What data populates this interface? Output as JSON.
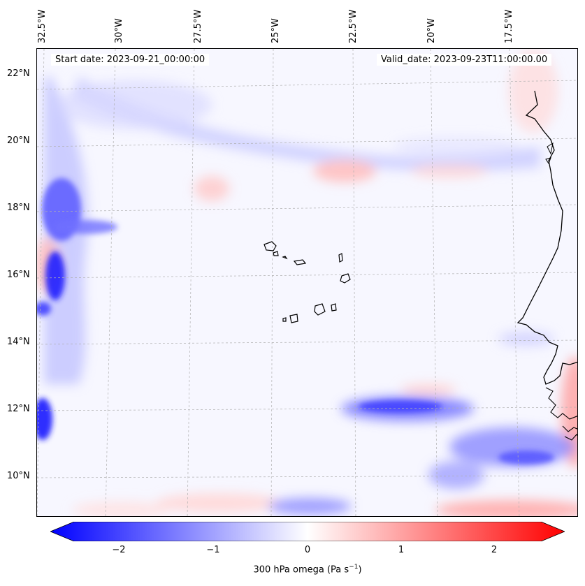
{
  "header": {
    "start_date": "Start date: 2023-09-21_00:00:00",
    "valid_date": "Valid_date: 2023-09-23T11:00:00.00"
  },
  "axes": {
    "lon_labels": [
      "32.5°W",
      "30°W",
      "27.5°W",
      "25°W",
      "22.5°W",
      "20°W",
      "17.5°W"
    ],
    "lat_labels": [
      "22°N",
      "20°N",
      "18°N",
      "16°N",
      "14°N",
      "12°N",
      "10°N"
    ]
  },
  "colorbar": {
    "ticks": [
      "−2",
      "−1",
      "0",
      "1",
      "2"
    ],
    "label": "300 hPa omega (Pa s",
    "label_sup": "−1",
    "label_end": ")",
    "min": -2.7,
    "max": 2.7,
    "low_color": "#0000ff",
    "high_color": "#ff0000"
  },
  "map": {
    "variable": "omega",
    "level": "300 hPa",
    "coastline_color": "#000000",
    "gridline_color": "#b0b0b0"
  }
}
